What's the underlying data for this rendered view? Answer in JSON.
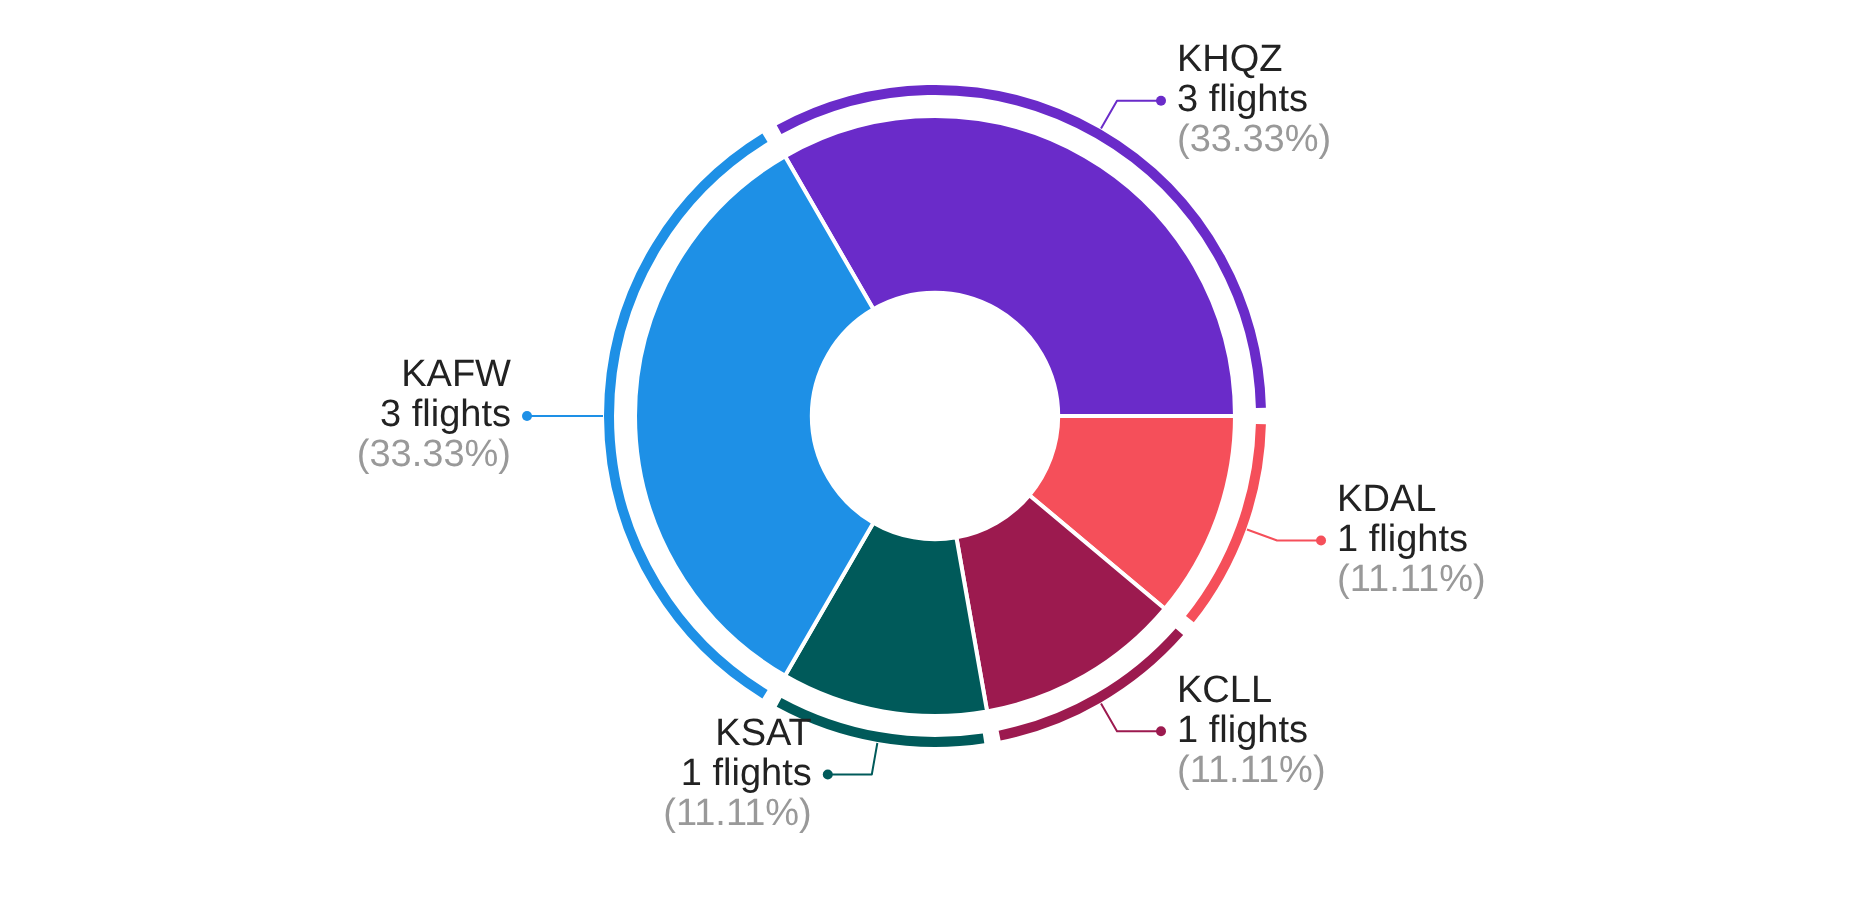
{
  "chart_data": {
    "type": "donut",
    "categories": [
      "KHQZ",
      "KDAL",
      "KCLL",
      "KSAT",
      "KAFW"
    ],
    "values": [
      3,
      1,
      1,
      1,
      3
    ],
    "colors": [
      "#6a2bc9",
      "#f54f5a",
      "#9c1a4f",
      "#005a5a",
      "#1e90e6"
    ],
    "value_labels": [
      "3 flights\n(33.33%)",
      "1 flights\n(11.11%)",
      "1 flights\n(11.11%)",
      "1 flights\n(11.11%)",
      "3 flights\n(33.33%)"
    ],
    "legend": false
  }
}
